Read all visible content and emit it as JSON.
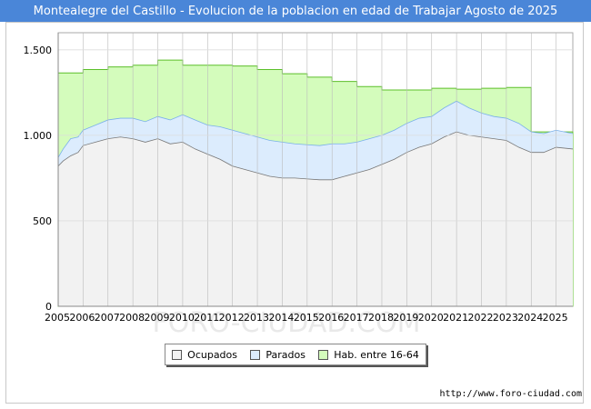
{
  "title": "Montealegre del Castillo - Evolucion de la poblacion en edad de Trabajar Agosto de 2025",
  "source_url": "http://www.foro-ciudad.com",
  "watermark": "FORO-CIUDAD.COM",
  "legend": {
    "ocupados": "Ocupados",
    "parados": "Parados",
    "hab": "Hab. entre 16-64"
  },
  "colors": {
    "ocupados_fill": "#f2f2f2",
    "parados_fill": "#dcecfd",
    "hab_fill": "#d4fcbc",
    "line": "#777777",
    "hab_line": "#5cbf2a",
    "parados_line": "#7ab0ea",
    "grid": "#dddddd",
    "title_bg": "#4a86d8"
  },
  "chart_data": {
    "type": "area",
    "title": "Montealegre del Castillo - Evolucion de la poblacion en edad de Trabajar Agosto de 2025",
    "xlabel": "",
    "ylabel": "",
    "x_range": [
      2005.0,
      2025.67
    ],
    "ylim": [
      0,
      1600
    ],
    "yticks": [
      0,
      500,
      1000,
      1500
    ],
    "ytick_labels": [
      "0",
      "500",
      "1.000",
      "1.500"
    ],
    "xtick_labels": [
      "2005",
      "2006",
      "2007",
      "2008",
      "2009",
      "2010",
      "2011",
      "2012",
      "2013",
      "2014",
      "2015",
      "2016",
      "2017",
      "2018",
      "2019",
      "2020",
      "2021",
      "2022",
      "2023",
      "2024",
      "2025"
    ],
    "series": [
      {
        "name": "Hab. entre 16-64",
        "kind": "step",
        "x": [
          2005,
          2006,
          2007,
          2008,
          2009,
          2010,
          2011,
          2012,
          2013,
          2014,
          2015,
          2016,
          2017,
          2018,
          2019,
          2020,
          2021,
          2022,
          2023,
          2024
        ],
        "values": [
          1365,
          1385,
          1400,
          1410,
          1440,
          1410,
          1410,
          1405,
          1385,
          1360,
          1340,
          1315,
          1285,
          1265,
          1265,
          1275,
          1270,
          1275,
          1280,
          1020
        ]
      },
      {
        "name": "Parados",
        "kind": "line",
        "x": [
          2005.0,
          2005.2,
          2005.5,
          2005.8,
          2006.0,
          2006.5,
          2007.0,
          2007.5,
          2008.0,
          2008.5,
          2009.0,
          2009.5,
          2010.0,
          2010.5,
          2011.0,
          2011.5,
          2012.0,
          2012.5,
          2013.0,
          2013.5,
          2014.0,
          2014.5,
          2015.0,
          2015.5,
          2016.0,
          2016.5,
          2017.0,
          2017.5,
          2018.0,
          2018.5,
          2019.0,
          2019.5,
          2020.0,
          2020.5,
          2021.0,
          2021.5,
          2022.0,
          2022.5,
          2023.0,
          2023.5,
          2024.0,
          2024.5,
          2025.0,
          2025.67
        ],
        "values": [
          870,
          920,
          980,
          990,
          1030,
          1060,
          1090,
          1100,
          1100,
          1080,
          1110,
          1090,
          1120,
          1090,
          1060,
          1050,
          1030,
          1010,
          990,
          970,
          960,
          950,
          945,
          940,
          950,
          950,
          960,
          980,
          1000,
          1030,
          1070,
          1100,
          1110,
          1160,
          1200,
          1160,
          1130,
          1110,
          1100,
          1070,
          1020,
          1010,
          1030,
          1010
        ]
      },
      {
        "name": "Ocupados",
        "kind": "line",
        "x": [
          2005.0,
          2005.2,
          2005.5,
          2005.8,
          2006.0,
          2006.5,
          2007.0,
          2007.5,
          2008.0,
          2008.5,
          2009.0,
          2009.5,
          2010.0,
          2010.5,
          2011.0,
          2011.5,
          2012.0,
          2012.5,
          2013.0,
          2013.5,
          2014.0,
          2014.5,
          2015.0,
          2015.5,
          2016.0,
          2016.5,
          2017.0,
          2017.5,
          2018.0,
          2018.5,
          2019.0,
          2019.5,
          2020.0,
          2020.5,
          2021.0,
          2021.5,
          2022.0,
          2022.5,
          2023.0,
          2023.5,
          2024.0,
          2024.5,
          2025.0,
          2025.67
        ],
        "values": [
          820,
          850,
          880,
          900,
          940,
          960,
          980,
          990,
          980,
          960,
          980,
          950,
          960,
          920,
          890,
          860,
          820,
          800,
          780,
          760,
          750,
          750,
          745,
          740,
          740,
          760,
          780,
          800,
          830,
          860,
          900,
          930,
          950,
          990,
          1020,
          1000,
          990,
          980,
          970,
          930,
          900,
          900,
          930,
          920
        ]
      }
    ]
  }
}
